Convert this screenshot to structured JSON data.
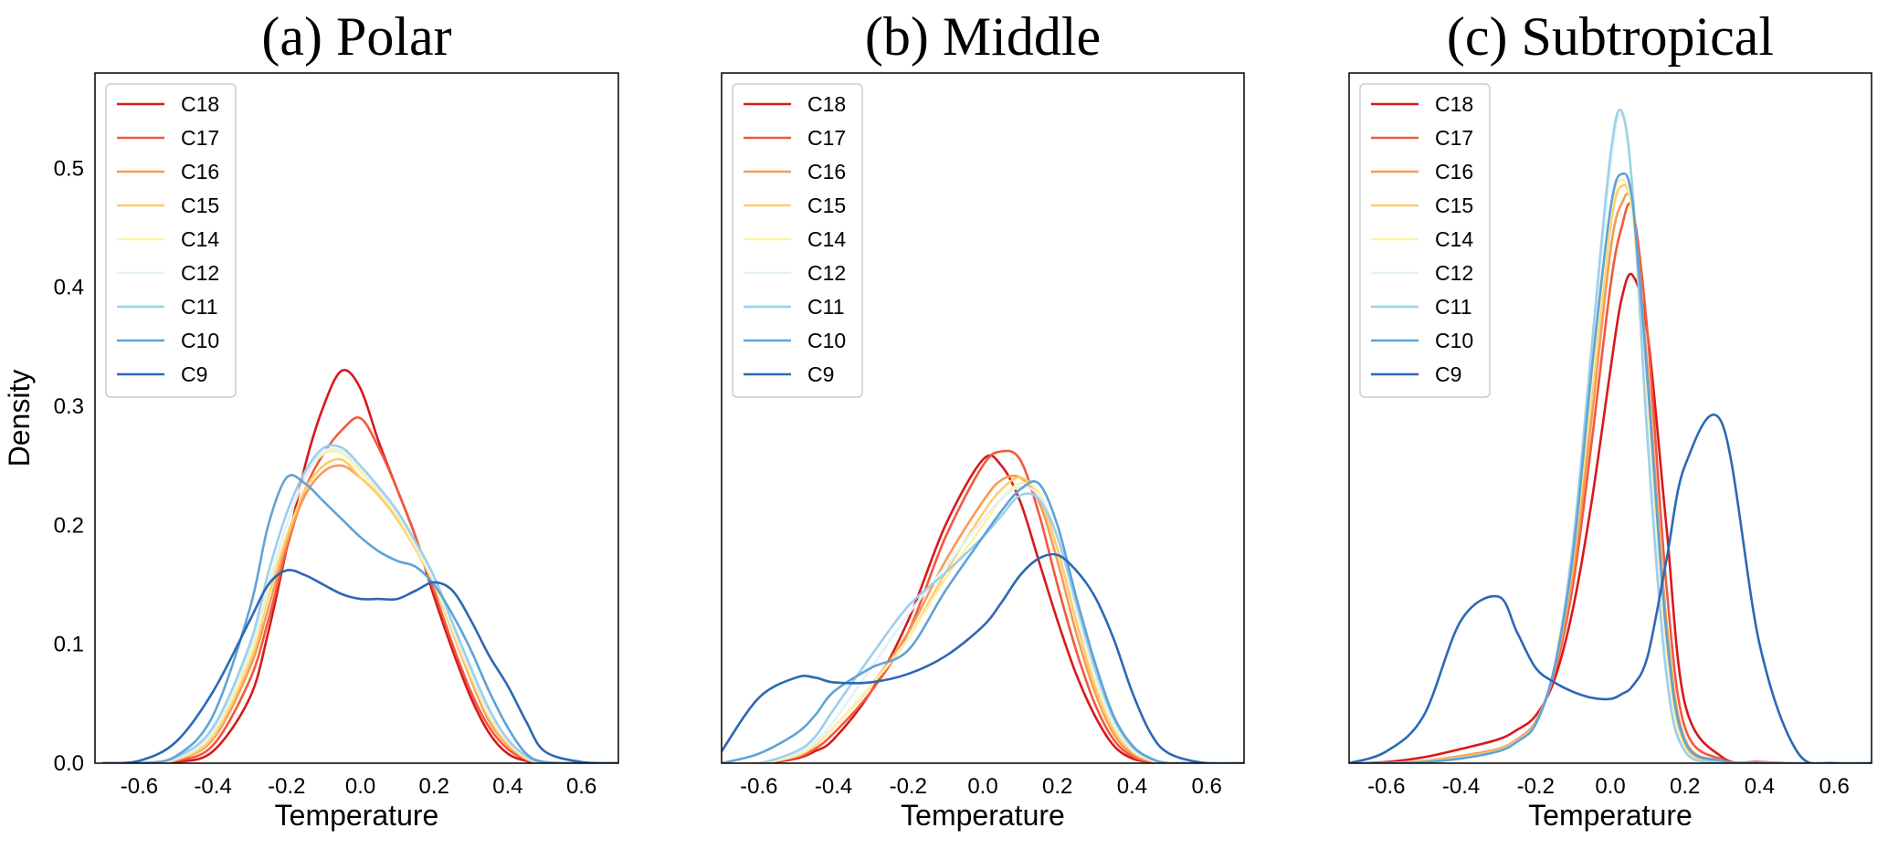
{
  "chart_data": [
    {
      "type": "line",
      "title": "(a) Polar",
      "xlabel": "Temperature",
      "ylabel": "Density",
      "xlim": [
        -0.72,
        0.7
      ],
      "ylim": [
        0,
        0.58
      ],
      "xticks": [
        "-0.6",
        "-0.4",
        "-0.2",
        "0.0",
        "0.2",
        "0.4",
        "0.6"
      ],
      "yticks": [
        "0.0",
        "0.1",
        "0.2",
        "0.3",
        "0.4",
        "0.5"
      ],
      "show_yticks": true,
      "legend": "top-left",
      "grid": false,
      "x": [
        -0.7,
        -0.6,
        -0.5,
        -0.4,
        -0.3,
        -0.25,
        -0.2,
        -0.15,
        -0.1,
        -0.05,
        0.0,
        0.05,
        0.1,
        0.15,
        0.2,
        0.25,
        0.3,
        0.35,
        0.4,
        0.45,
        0.5,
        0.6,
        0.7
      ],
      "series": [
        {
          "name": "C18",
          "color": "#d7191c",
          "values": [
            0,
            0,
            0.001,
            0.01,
            0.055,
            0.11,
            0.18,
            0.25,
            0.3,
            0.33,
            0.315,
            0.27,
            0.23,
            0.19,
            0.14,
            0.095,
            0.055,
            0.025,
            0.008,
            0.002,
            0,
            0,
            0
          ]
        },
        {
          "name": "C17",
          "color": "#f05a3c",
          "values": [
            0,
            0,
            0.002,
            0.015,
            0.07,
            0.12,
            0.18,
            0.23,
            0.26,
            0.28,
            0.29,
            0.265,
            0.23,
            0.19,
            0.145,
            0.1,
            0.06,
            0.03,
            0.012,
            0.003,
            0,
            0,
            0
          ]
        },
        {
          "name": "C16",
          "color": "#f79a55",
          "values": [
            0,
            0,
            0.003,
            0.02,
            0.08,
            0.13,
            0.185,
            0.225,
            0.245,
            0.25,
            0.24,
            0.225,
            0.205,
            0.18,
            0.15,
            0.11,
            0.07,
            0.035,
            0.015,
            0.004,
            0,
            0,
            0
          ]
        },
        {
          "name": "C15",
          "color": "#fdcd6d",
          "values": [
            0,
            0,
            0.003,
            0.022,
            0.085,
            0.14,
            0.19,
            0.23,
            0.25,
            0.255,
            0.24,
            0.225,
            0.205,
            0.18,
            0.15,
            0.11,
            0.072,
            0.038,
            0.016,
            0.004,
            0,
            0,
            0
          ]
        },
        {
          "name": "C14",
          "color": "#fff2a8",
          "values": [
            0,
            0,
            0.004,
            0.025,
            0.09,
            0.145,
            0.2,
            0.24,
            0.26,
            0.26,
            0.245,
            0.228,
            0.208,
            0.182,
            0.152,
            0.113,
            0.075,
            0.04,
            0.018,
            0.005,
            0,
            0,
            0
          ]
        },
        {
          "name": "C12",
          "color": "#e3f1fa",
          "values": [
            0,
            0,
            0.004,
            0.027,
            0.095,
            0.15,
            0.2,
            0.24,
            0.262,
            0.262,
            0.248,
            0.23,
            0.21,
            0.184,
            0.154,
            0.115,
            0.077,
            0.042,
            0.019,
            0.005,
            0,
            0,
            0
          ]
        },
        {
          "name": "C11",
          "color": "#9ecfe9",
          "values": [
            0,
            0,
            0.005,
            0.03,
            0.1,
            0.16,
            0.21,
            0.245,
            0.265,
            0.265,
            0.25,
            0.232,
            0.212,
            0.186,
            0.157,
            0.118,
            0.08,
            0.045,
            0.02,
            0.006,
            0,
            0,
            0
          ]
        },
        {
          "name": "C10",
          "color": "#5fa3d6",
          "values": [
            0,
            0,
            0.006,
            0.04,
            0.13,
            0.2,
            0.24,
            0.235,
            0.22,
            0.205,
            0.19,
            0.178,
            0.17,
            0.165,
            0.15,
            0.125,
            0.095,
            0.06,
            0.03,
            0.008,
            0.001,
            0,
            0
          ]
        },
        {
          "name": "C9",
          "color": "#2c68b5",
          "values": [
            0,
            0.002,
            0.018,
            0.06,
            0.12,
            0.15,
            0.162,
            0.158,
            0.15,
            0.142,
            0.138,
            0.138,
            0.138,
            0.145,
            0.152,
            0.145,
            0.12,
            0.09,
            0.065,
            0.035,
            0.01,
            0.001,
            0
          ]
        }
      ]
    },
    {
      "type": "line",
      "title": "(b) Middle",
      "xlabel": "Temperature",
      "ylabel": "",
      "xlim": [
        -0.7,
        0.7
      ],
      "ylim": [
        0,
        0.58
      ],
      "xticks": [
        "-0.6",
        "-0.4",
        "-0.2",
        "0.0",
        "0.2",
        "0.4",
        "0.6"
      ],
      "yticks": [],
      "show_yticks": false,
      "legend": "top-left",
      "grid": false,
      "x": [
        -0.7,
        -0.6,
        -0.5,
        -0.45,
        -0.4,
        -0.3,
        -0.2,
        -0.1,
        0.0,
        0.05,
        0.1,
        0.15,
        0.2,
        0.25,
        0.3,
        0.35,
        0.4,
        0.45,
        0.5,
        0.6,
        0.7
      ],
      "series": [
        {
          "name": "C18",
          "color": "#d7191c",
          "values": [
            0,
            0,
            0.004,
            0.01,
            0.02,
            0.06,
            0.12,
            0.2,
            0.255,
            0.25,
            0.22,
            0.17,
            0.12,
            0.075,
            0.04,
            0.015,
            0.004,
            0.001,
            0,
            0,
            0
          ]
        },
        {
          "name": "C17",
          "color": "#f05a3c",
          "values": [
            0,
            0,
            0.005,
            0.012,
            0.025,
            0.06,
            0.11,
            0.19,
            0.25,
            0.262,
            0.255,
            0.21,
            0.15,
            0.095,
            0.05,
            0.02,
            0.006,
            0.001,
            0,
            0,
            0
          ]
        },
        {
          "name": "C16",
          "color": "#f79a55",
          "values": [
            0,
            0,
            0.006,
            0.015,
            0.03,
            0.065,
            0.11,
            0.17,
            0.22,
            0.238,
            0.24,
            0.22,
            0.17,
            0.11,
            0.06,
            0.025,
            0.008,
            0.002,
            0,
            0,
            0
          ]
        },
        {
          "name": "C15",
          "color": "#fdcd6d",
          "values": [
            0,
            0,
            0.006,
            0.015,
            0.03,
            0.065,
            0.105,
            0.16,
            0.21,
            0.23,
            0.24,
            0.225,
            0.18,
            0.12,
            0.065,
            0.028,
            0.01,
            0.002,
            0,
            0,
            0
          ]
        },
        {
          "name": "C14",
          "color": "#fff2a8",
          "values": [
            0,
            0,
            0.007,
            0.016,
            0.03,
            0.065,
            0.105,
            0.155,
            0.2,
            0.222,
            0.235,
            0.228,
            0.19,
            0.13,
            0.072,
            0.032,
            0.011,
            0.003,
            0,
            0,
            0
          ]
        },
        {
          "name": "C12",
          "color": "#e3f1fa",
          "values": [
            0,
            0,
            0.008,
            0.018,
            0.035,
            0.08,
            0.125,
            0.165,
            0.205,
            0.222,
            0.232,
            0.225,
            0.19,
            0.13,
            0.075,
            0.034,
            0.012,
            0.003,
            0,
            0,
            0
          ]
        },
        {
          "name": "C11",
          "color": "#9ecfe9",
          "values": [
            0,
            0,
            0.01,
            0.022,
            0.045,
            0.09,
            0.132,
            0.16,
            0.19,
            0.208,
            0.225,
            0.222,
            0.19,
            0.135,
            0.08,
            0.038,
            0.014,
            0.004,
            0,
            0,
            0
          ]
        },
        {
          "name": "C10",
          "color": "#5fa3d6",
          "values": [
            0,
            0.008,
            0.025,
            0.04,
            0.06,
            0.08,
            0.095,
            0.145,
            0.19,
            0.212,
            0.23,
            0.235,
            0.2,
            0.14,
            0.085,
            0.04,
            0.015,
            0.004,
            0,
            0,
            0
          ]
        },
        {
          "name": "C9",
          "color": "#2c68b5",
          "values": [
            0.01,
            0.055,
            0.072,
            0.072,
            0.068,
            0.068,
            0.075,
            0.09,
            0.115,
            0.135,
            0.158,
            0.172,
            0.175,
            0.162,
            0.14,
            0.105,
            0.06,
            0.025,
            0.008,
            0,
            0
          ]
        }
      ]
    },
    {
      "type": "line",
      "title": "(c) Subtropical",
      "xlabel": "Temperature",
      "ylabel": "",
      "xlim": [
        -0.7,
        0.7
      ],
      "ylim": [
        0,
        0.58
      ],
      "xticks": [
        "-0.6",
        "-0.4",
        "-0.2",
        "0.0",
        "0.2",
        "0.4",
        "0.6"
      ],
      "yticks": [],
      "show_yticks": false,
      "legend": "top-left",
      "grid": false,
      "x": [
        -0.7,
        -0.6,
        -0.5,
        -0.4,
        -0.3,
        -0.25,
        -0.2,
        -0.15,
        -0.1,
        -0.05,
        0.0,
        0.03,
        0.06,
        0.1,
        0.15,
        0.2,
        0.3,
        0.4,
        0.5,
        0.6,
        0.7
      ],
      "series": [
        {
          "name": "C18",
          "color": "#d7191c",
          "values": [
            0,
            0.001,
            0.005,
            0.012,
            0.02,
            0.028,
            0.04,
            0.07,
            0.13,
            0.22,
            0.33,
            0.39,
            0.41,
            0.36,
            0.2,
            0.05,
            0.005,
            0.001,
            0,
            0,
            0
          ]
        },
        {
          "name": "C17",
          "color": "#f05a3c",
          "values": [
            0,
            0,
            0.002,
            0.006,
            0.012,
            0.02,
            0.035,
            0.075,
            0.15,
            0.27,
            0.4,
            0.45,
            0.465,
            0.36,
            0.15,
            0.03,
            0.003,
            0.001,
            0,
            0,
            0
          ]
        },
        {
          "name": "C16",
          "color": "#f79a55",
          "values": [
            0,
            0,
            0.002,
            0.006,
            0.012,
            0.02,
            0.035,
            0.078,
            0.16,
            0.29,
            0.43,
            0.47,
            0.465,
            0.33,
            0.12,
            0.02,
            0.002,
            0,
            0,
            0,
            0
          ]
        },
        {
          "name": "C15",
          "color": "#fdcd6d",
          "values": [
            0,
            0,
            0.002,
            0.005,
            0.011,
            0.019,
            0.034,
            0.08,
            0.17,
            0.31,
            0.45,
            0.485,
            0.46,
            0.31,
            0.1,
            0.015,
            0.001,
            0,
            0,
            0,
            0
          ]
        },
        {
          "name": "C14",
          "color": "#fff2a8",
          "values": [
            0,
            0,
            0.001,
            0.004,
            0.01,
            0.018,
            0.033,
            0.08,
            0.175,
            0.32,
            0.46,
            0.49,
            0.46,
            0.3,
            0.09,
            0.012,
            0.001,
            0,
            0,
            0,
            0
          ]
        },
        {
          "name": "C12",
          "color": "#e3f1fa",
          "values": [
            0,
            0,
            0.001,
            0.004,
            0.01,
            0.018,
            0.033,
            0.08,
            0.18,
            0.34,
            0.5,
            0.545,
            0.48,
            0.28,
            0.08,
            0.01,
            0.001,
            0,
            0,
            0,
            0
          ]
        },
        {
          "name": "C11",
          "color": "#9ecfe9",
          "values": [
            0,
            0,
            0.001,
            0.004,
            0.01,
            0.018,
            0.033,
            0.08,
            0.185,
            0.35,
            0.51,
            0.548,
            0.48,
            0.27,
            0.075,
            0.01,
            0.001,
            0,
            0,
            0,
            0
          ]
        },
        {
          "name": "C10",
          "color": "#5fa3d6",
          "values": [
            0,
            0,
            0.001,
            0.004,
            0.01,
            0.018,
            0.033,
            0.08,
            0.175,
            0.33,
            0.465,
            0.495,
            0.47,
            0.32,
            0.11,
            0.018,
            0.002,
            0,
            0,
            0,
            0
          ]
        },
        {
          "name": "C9",
          "color": "#2c68b5",
          "values": [
            0,
            0.01,
            0.04,
            0.12,
            0.14,
            0.11,
            0.08,
            0.068,
            0.06,
            0.055,
            0.054,
            0.058,
            0.065,
            0.09,
            0.17,
            0.25,
            0.285,
            0.1,
            0.01,
            0,
            0
          ]
        }
      ]
    }
  ]
}
